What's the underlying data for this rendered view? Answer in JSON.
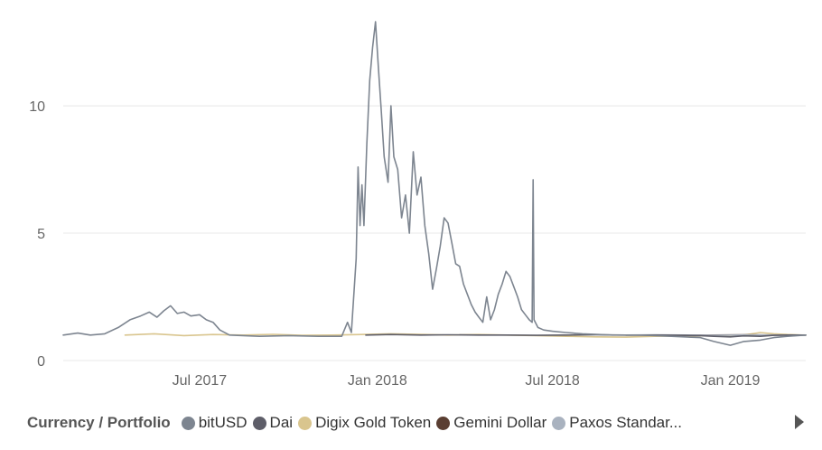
{
  "chart_data": {
    "type": "line",
    "title": "",
    "xlabel": "",
    "ylabel": "",
    "x_range": [
      "2017-02-10",
      "2019-03-20"
    ],
    "ylim": [
      0,
      13.8
    ],
    "yticks": [
      0,
      5,
      10
    ],
    "ytick_labels": [
      "0",
      "5",
      "10"
    ],
    "xticks": [
      "2017-07-01",
      "2018-01-01",
      "2018-07-01",
      "2019-01-01"
    ],
    "xtick_labels": [
      "Jul 2017",
      "Jan 2018",
      "Jul 2018",
      "Jan 2019"
    ],
    "grid": "horizontal",
    "legend": {
      "title": "Currency / Portfolio",
      "placement": "bottom",
      "items": [
        "bitUSD",
        "Dai",
        "Digix Gold Token",
        "Gemini Dollar",
        "Paxos Standar..."
      ]
    },
    "series": [
      {
        "name": "bitUSD",
        "color": "#7d8590",
        "points": [
          [
            "2017-02-10",
            1.0
          ],
          [
            "2017-02-25",
            1.08
          ],
          [
            "2017-03-10",
            1.0
          ],
          [
            "2017-03-25",
            1.05
          ],
          [
            "2017-04-08",
            1.3
          ],
          [
            "2017-04-20",
            1.6
          ],
          [
            "2017-05-01",
            1.75
          ],
          [
            "2017-05-10",
            1.9
          ],
          [
            "2017-05-18",
            1.7
          ],
          [
            "2017-05-25",
            1.95
          ],
          [
            "2017-06-01",
            2.15
          ],
          [
            "2017-06-08",
            1.85
          ],
          [
            "2017-06-15",
            1.9
          ],
          [
            "2017-06-22",
            1.75
          ],
          [
            "2017-07-01",
            1.8
          ],
          [
            "2017-07-08",
            1.6
          ],
          [
            "2017-07-15",
            1.5
          ],
          [
            "2017-07-22",
            1.2
          ],
          [
            "2017-08-01",
            1.0
          ],
          [
            "2017-09-01",
            0.95
          ],
          [
            "2017-10-01",
            0.98
          ],
          [
            "2017-11-01",
            0.95
          ],
          [
            "2017-11-25",
            0.95
          ],
          [
            "2017-12-01",
            1.5
          ],
          [
            "2017-12-05",
            1.1
          ],
          [
            "2017-12-10",
            4.0
          ],
          [
            "2017-12-12",
            7.6
          ],
          [
            "2017-12-14",
            5.3
          ],
          [
            "2017-12-16",
            6.9
          ],
          [
            "2017-12-18",
            5.3
          ],
          [
            "2017-12-21",
            8.5
          ],
          [
            "2017-12-24",
            11.0
          ],
          [
            "2017-12-27",
            12.3
          ],
          [
            "2017-12-30",
            13.3
          ],
          [
            "2018-01-02",
            11.5
          ],
          [
            "2018-01-05",
            9.8
          ],
          [
            "2018-01-08",
            8.0
          ],
          [
            "2018-01-12",
            7.0
          ],
          [
            "2018-01-15",
            10.0
          ],
          [
            "2018-01-18",
            8.0
          ],
          [
            "2018-01-22",
            7.5
          ],
          [
            "2018-01-26",
            5.6
          ],
          [
            "2018-01-30",
            6.5
          ],
          [
            "2018-02-03",
            5.0
          ],
          [
            "2018-02-07",
            8.2
          ],
          [
            "2018-02-11",
            6.5
          ],
          [
            "2018-02-15",
            7.2
          ],
          [
            "2018-02-19",
            5.3
          ],
          [
            "2018-02-23",
            4.2
          ],
          [
            "2018-02-27",
            2.8
          ],
          [
            "2018-03-03",
            3.6
          ],
          [
            "2018-03-07",
            4.5
          ],
          [
            "2018-03-11",
            5.6
          ],
          [
            "2018-03-15",
            5.4
          ],
          [
            "2018-03-19",
            4.6
          ],
          [
            "2018-03-23",
            3.8
          ],
          [
            "2018-03-27",
            3.7
          ],
          [
            "2018-03-31",
            3.0
          ],
          [
            "2018-04-04",
            2.6
          ],
          [
            "2018-04-08",
            2.2
          ],
          [
            "2018-04-12",
            1.9
          ],
          [
            "2018-04-16",
            1.7
          ],
          [
            "2018-04-20",
            1.5
          ],
          [
            "2018-04-24",
            2.5
          ],
          [
            "2018-04-28",
            1.6
          ],
          [
            "2018-05-02",
            2.0
          ],
          [
            "2018-05-06",
            2.6
          ],
          [
            "2018-05-10",
            3.0
          ],
          [
            "2018-05-14",
            3.5
          ],
          [
            "2018-05-18",
            3.3
          ],
          [
            "2018-05-22",
            2.9
          ],
          [
            "2018-05-26",
            2.5
          ],
          [
            "2018-05-30",
            2.0
          ],
          [
            "2018-06-03",
            1.8
          ],
          [
            "2018-06-07",
            1.6
          ],
          [
            "2018-06-10",
            1.5
          ],
          [
            "2018-06-11",
            7.1
          ],
          [
            "2018-06-12",
            1.6
          ],
          [
            "2018-06-16",
            1.3
          ],
          [
            "2018-06-22",
            1.2
          ],
          [
            "2018-07-01",
            1.15
          ],
          [
            "2018-07-15",
            1.1
          ],
          [
            "2018-08-01",
            1.05
          ],
          [
            "2018-09-01",
            1.0
          ],
          [
            "2018-10-01",
            1.0
          ],
          [
            "2018-11-01",
            0.95
          ],
          [
            "2018-12-01",
            0.9
          ],
          [
            "2018-12-15",
            0.75
          ],
          [
            "2019-01-01",
            0.6
          ],
          [
            "2019-01-15",
            0.75
          ],
          [
            "2019-02-01",
            0.8
          ],
          [
            "2019-02-15",
            0.9
          ],
          [
            "2019-03-01",
            0.95
          ],
          [
            "2019-03-20",
            1.0
          ]
        ]
      },
      {
        "name": "Dai",
        "color": "#5e5e69",
        "points": [
          [
            "2017-12-20",
            1.0
          ],
          [
            "2018-01-15",
            1.02
          ],
          [
            "2018-02-15",
            1.0
          ],
          [
            "2018-03-15",
            1.01
          ],
          [
            "2018-04-15",
            1.0
          ],
          [
            "2018-05-15",
            1.0
          ],
          [
            "2018-06-15",
            0.99
          ],
          [
            "2018-07-15",
            1.0
          ],
          [
            "2018-08-15",
            1.01
          ],
          [
            "2018-09-15",
            1.0
          ],
          [
            "2018-10-15",
            1.0
          ],
          [
            "2018-11-15",
            0.99
          ],
          [
            "2018-12-01",
            0.98
          ],
          [
            "2018-12-15",
            0.95
          ],
          [
            "2019-01-01",
            0.93
          ],
          [
            "2019-01-15",
            0.97
          ],
          [
            "2019-02-01",
            0.95
          ],
          [
            "2019-02-15",
            0.99
          ],
          [
            "2019-03-01",
            1.0
          ],
          [
            "2019-03-20",
            1.0
          ]
        ]
      },
      {
        "name": "Digix Gold Token",
        "color": "#d9c58e",
        "points": [
          [
            "2017-04-15",
            1.0
          ],
          [
            "2017-05-15",
            1.05
          ],
          [
            "2017-06-15",
            0.98
          ],
          [
            "2017-07-15",
            1.02
          ],
          [
            "2017-08-15",
            1.0
          ],
          [
            "2017-09-15",
            1.03
          ],
          [
            "2017-10-15",
            0.99
          ],
          [
            "2017-11-15",
            1.0
          ],
          [
            "2017-12-15",
            1.02
          ],
          [
            "2018-01-15",
            1.05
          ],
          [
            "2018-02-15",
            1.03
          ],
          [
            "2018-03-15",
            1.0
          ],
          [
            "2018-04-15",
            1.02
          ],
          [
            "2018-05-15",
            1.0
          ],
          [
            "2018-06-15",
            0.98
          ],
          [
            "2018-07-15",
            0.95
          ],
          [
            "2018-08-15",
            0.93
          ],
          [
            "2018-09-15",
            0.92
          ],
          [
            "2018-10-15",
            0.95
          ],
          [
            "2018-11-15",
            0.97
          ],
          [
            "2018-12-15",
            0.98
          ],
          [
            "2019-01-15",
            1.0
          ],
          [
            "2019-02-01",
            1.1
          ],
          [
            "2019-02-15",
            1.05
          ],
          [
            "2019-03-01",
            1.02
          ],
          [
            "2019-03-20",
            1.0
          ]
        ]
      },
      {
        "name": "Gemini Dollar",
        "color": "#5a3e32",
        "points": [
          [
            "2018-09-15",
            1.0
          ],
          [
            "2018-10-15",
            1.0
          ],
          [
            "2018-11-15",
            0.99
          ],
          [
            "2018-12-15",
            1.0
          ],
          [
            "2019-01-15",
            1.01
          ],
          [
            "2019-02-15",
            1.0
          ],
          [
            "2019-03-20",
            1.0
          ]
        ]
      },
      {
        "name": "Paxos Standar...",
        "color": "#a9b2bf",
        "points": [
          [
            "2018-09-15",
            1.0
          ],
          [
            "2018-10-15",
            1.01
          ],
          [
            "2018-11-15",
            1.0
          ],
          [
            "2018-12-15",
            0.99
          ],
          [
            "2019-01-15",
            1.0
          ],
          [
            "2019-02-15",
            1.0
          ],
          [
            "2019-03-20",
            1.0
          ]
        ]
      }
    ]
  }
}
